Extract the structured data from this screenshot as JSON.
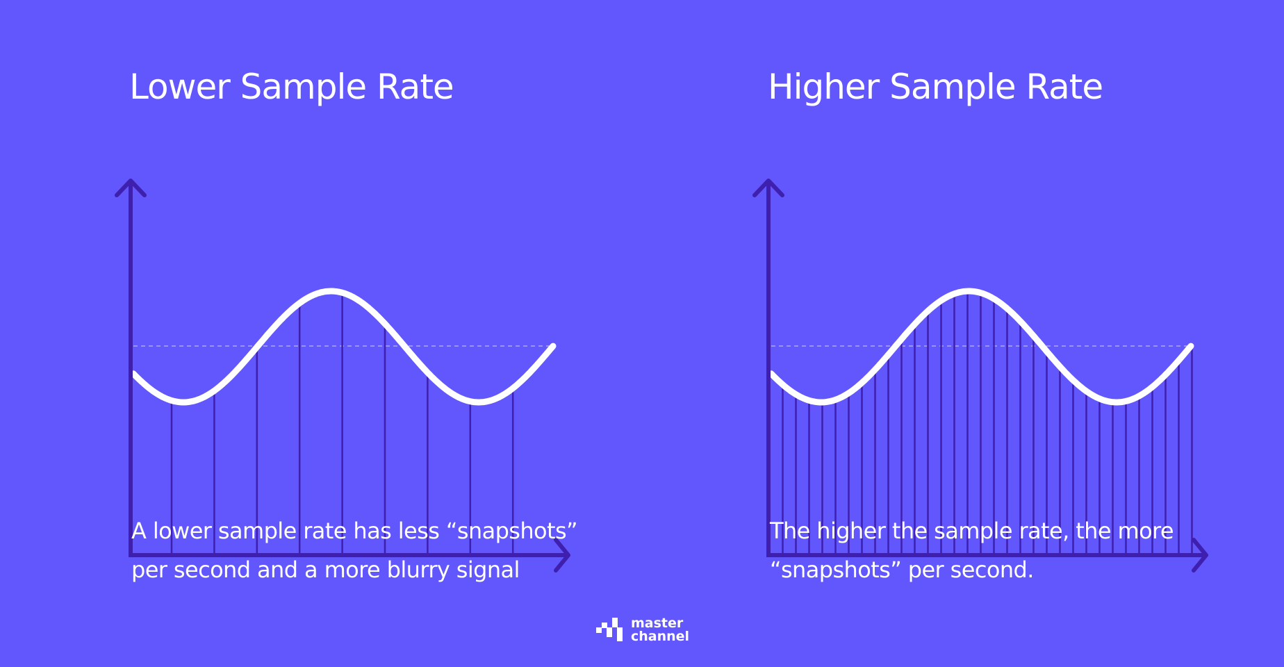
{
  "colors": {
    "background": "#6157fc",
    "axis": "#3f1fae",
    "wave": "#ffffff",
    "sample_line": "#3f1fae",
    "baseline": "#9a94ff"
  },
  "left": {
    "title": "Lower Sample Rate",
    "description": "A lower sample rate has less “snapshots” per second and a more blurry signal",
    "sample_count": 9
  },
  "right": {
    "title": "Higher Sample Rate",
    "description": "The higher the sample rate, the more “snapshots” per second.",
    "sample_count": 32
  },
  "logo": {
    "line1": "master",
    "line2": "channel"
  }
}
